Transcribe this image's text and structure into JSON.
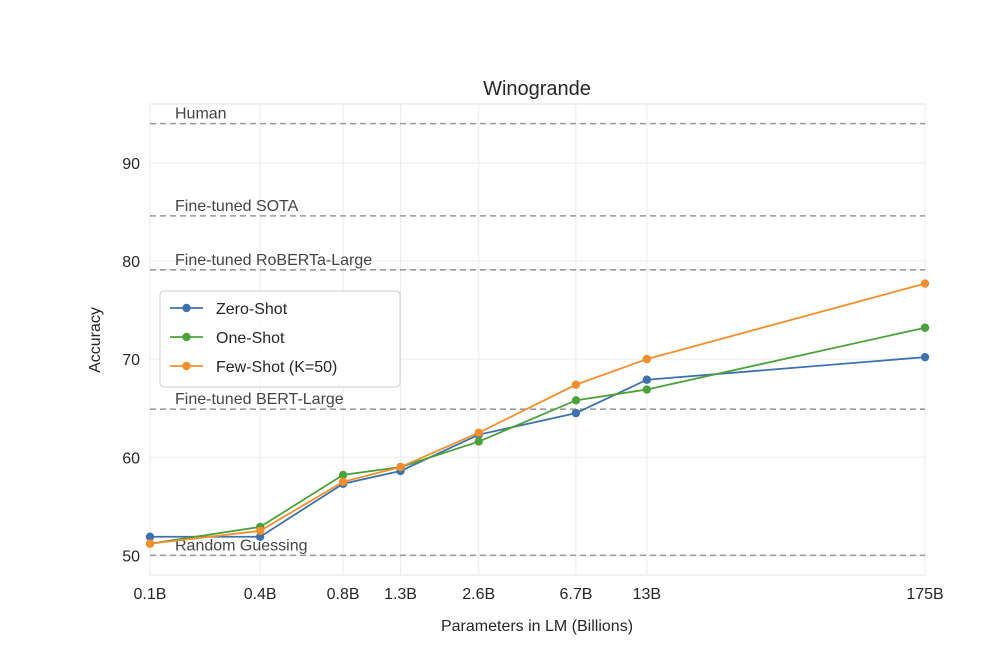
{
  "chart_data": {
    "type": "line",
    "title": "Winogrande",
    "xlabel": "Parameters in LM (Billions)",
    "ylabel": "Accuracy",
    "categories": [
      "0.1B",
      "0.4B",
      "0.8B",
      "1.3B",
      "2.6B",
      "6.7B",
      "13B",
      "175B"
    ],
    "x_values": [
      0.125,
      0.35,
      0.76,
      1.3,
      2.7,
      6.7,
      13,
      175
    ],
    "ylim": [
      48,
      96
    ],
    "y_ticks": [
      50,
      60,
      70,
      80,
      90
    ],
    "grid": true,
    "legend_position": "center-left",
    "series": [
      {
        "name": "Zero-Shot",
        "color": "#3f72ad",
        "values": [
          51.9,
          51.9,
          57.3,
          58.6,
          62.3,
          64.5,
          67.9,
          70.2
        ]
      },
      {
        "name": "One-Shot",
        "color": "#4ca23a",
        "values": [
          51.2,
          52.9,
          58.2,
          59.0,
          61.6,
          65.8,
          66.9,
          73.2
        ]
      },
      {
        "name": "Few-Shot (K=50)",
        "color": "#f28e2b",
        "values": [
          51.2,
          52.5,
          57.5,
          59.0,
          62.5,
          67.4,
          70.0,
          77.7
        ]
      }
    ],
    "reference_lines": [
      {
        "label": "Human",
        "value": 94.0
      },
      {
        "label": "Fine-tuned SOTA",
        "value": 84.6
      },
      {
        "label": "Fine-tuned RoBERTa-Large",
        "value": 79.1
      },
      {
        "label": "Fine-tuned BERT-Large",
        "value": 64.9
      },
      {
        "label": "Random Guessing",
        "value": 50.0
      }
    ]
  }
}
